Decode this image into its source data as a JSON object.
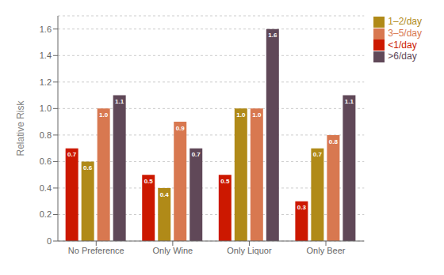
{
  "chart_data": {
    "type": "bar",
    "categories": [
      "No Preference",
      "Only Wine",
      "Only Liquor",
      "Only Beer"
    ],
    "series": [
      {
        "name": "<1/day",
        "color": "#cc1800",
        "values": [
          0.7,
          0.5,
          0.5,
          0.3
        ]
      },
      {
        "name": "1–2/day",
        "color": "#b08a18",
        "values": [
          0.6,
          0.4,
          1.0,
          0.7
        ],
        "value_labels": [
          "0.6",
          "0.4",
          "1.0",
          "0.7"
        ]
      },
      {
        "name": "3–5/day",
        "color": "#d87850",
        "values": [
          1.0,
          0.9,
          1.0,
          0.8
        ],
        "value_labels": [
          "1.0",
          "0.9",
          "1.0",
          "0.8"
        ]
      },
      {
        "name": ">6/day",
        "color": "#604858",
        "values": [
          1.1,
          0.7,
          1.6,
          1.1
        ]
      }
    ],
    "ylabel": "Relative Risk",
    "ylim": [
      0,
      1.7
    ],
    "yticks": [
      0,
      0.2,
      0.4,
      0.6,
      0.8,
      {
        "value": 1.0,
        "label": "1.0"
      },
      1.2,
      1.4,
      1.6
    ],
    "grid": true,
    "legend": "right",
    "data_labels": true
  }
}
